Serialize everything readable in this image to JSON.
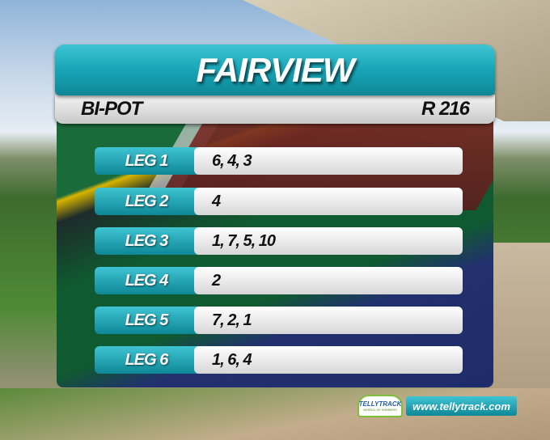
{
  "header": {
    "venue": "FAIRVIEW",
    "bet_type": "BI-POT",
    "pool": "R 216"
  },
  "legs": [
    {
      "label": "LEG 1",
      "runners": "6, 4, 3"
    },
    {
      "label": "LEG 2",
      "runners": "4"
    },
    {
      "label": "LEG 3",
      "runners": "1, 7, 5, 10"
    },
    {
      "label": "LEG 4",
      "runners": "2"
    },
    {
      "label": "LEG 5",
      "runners": "7, 2, 1"
    },
    {
      "label": "LEG 6",
      "runners": "1, 6, 4"
    }
  ],
  "branding": {
    "logo_text": "TELLYTRACK",
    "logo_tagline": "WORLD OF WINNERS",
    "url": "www.tellytrack.com"
  },
  "colors": {
    "accent": "#17a5b6",
    "panel_light": "#e8e8e8"
  }
}
